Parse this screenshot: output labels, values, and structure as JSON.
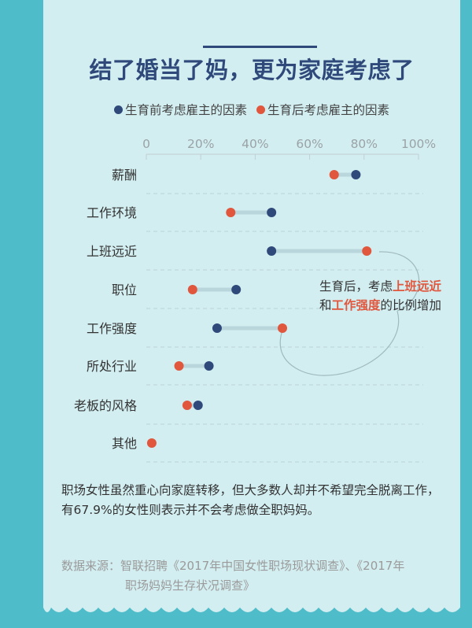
{
  "title": "结了婚当了妈，更为家庭考虑了",
  "legend": {
    "before": "生育前考虑雇主的因素",
    "after": "生育后考虑雇主的因素"
  },
  "colors": {
    "before": "#2f4a7a",
    "after": "#e0573e",
    "connector": "#b8d6dc",
    "background": "#4fbcc9",
    "card": "#d3eef1"
  },
  "annotation": {
    "pre": "生育后，考虑",
    "hl1": "上班远近",
    "mid": "和",
    "hl2": "工作强度",
    "post": "的比例增加"
  },
  "body_text": "职场女性虽然重心向家庭转移，但大多数人却并不希望完全脱离工作，有67.9%的女性则表示并不会考虑做全职妈妈。",
  "source": {
    "line1": "数据来源：智联招聘《2017年中国女性职场现状调查》、《2017年",
    "line2": "职场妈妈生存状况调查》"
  },
  "chart_data": {
    "type": "dumbbell",
    "title": "结了婚当了妈，更为家庭考虑了",
    "x_ticks": [
      "0",
      "20%",
      "40%",
      "60%",
      "80%",
      "100%"
    ],
    "xlim": [
      0,
      100
    ],
    "grid": true,
    "legend_position": "top",
    "categories": [
      "薪酬",
      "工作环境",
      "上班远近",
      "职位",
      "工作强度",
      "所处行业",
      "老板的风格",
      "其他"
    ],
    "series": [
      {
        "name": "生育前考虑雇主的因素",
        "values": [
          77,
          46,
          46,
          33,
          26,
          23,
          19,
          null
        ]
      },
      {
        "name": "生育后考虑雇主的因素",
        "values": [
          69,
          31,
          81,
          17,
          50,
          12,
          15,
          2
        ]
      }
    ]
  }
}
